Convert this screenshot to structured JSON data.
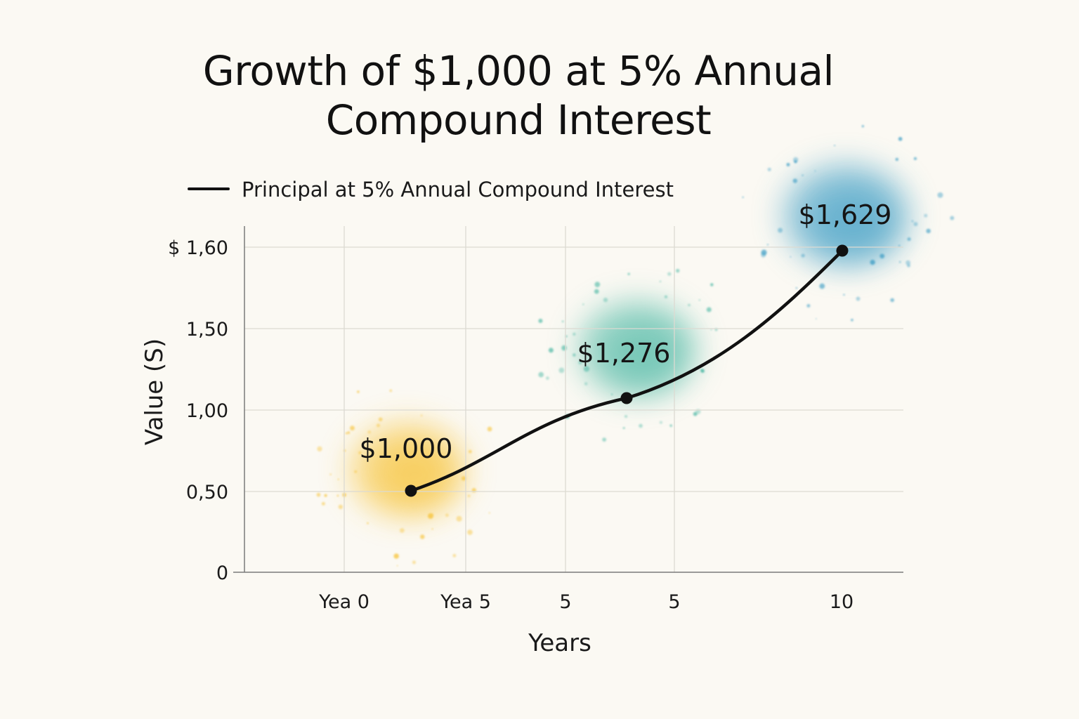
{
  "chart_data": {
    "type": "line",
    "title_lines": [
      "Growth of $1,000 at 5% Annual",
      "Compound Interest"
    ],
    "xlabel": "Years",
    "ylabel": "Value (S)",
    "x_tick_labels": [
      "Yea 0",
      "Yea 5",
      "5",
      "5",
      "10"
    ],
    "y_tick_labels": [
      "$ 1,60",
      "1,50",
      "1,00",
      "0,50",
      "0"
    ],
    "grid": true,
    "legend_position": "top-left",
    "series": [
      {
        "name": "Principal at 5% Annual Compound Interest",
        "color": "#111111",
        "points": [
          {
            "year": 0,
            "value": 1000,
            "label": "$1,000",
            "splash_color": "#f7c234"
          },
          {
            "year": 5,
            "value": 1276,
            "label": "$1,276",
            "splash_color": "#4fb9a6"
          },
          {
            "year": 10,
            "value": 1629,
            "label": "$1,629",
            "splash_color": "#3a9cc4"
          }
        ]
      }
    ]
  }
}
